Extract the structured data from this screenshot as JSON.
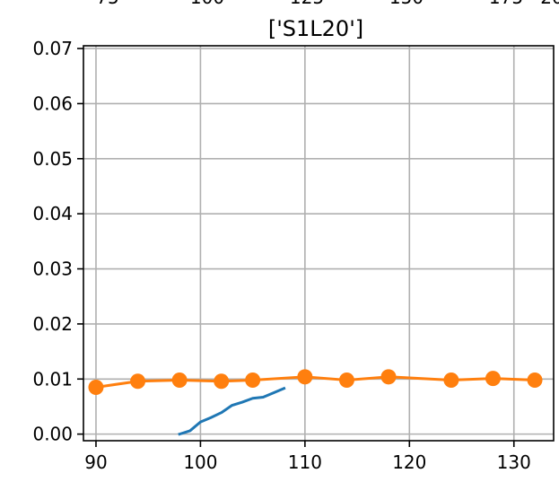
{
  "chart_data": {
    "type": "line",
    "title": "['S1L20']",
    "xlabel": "",
    "ylabel": "",
    "xlim": [
      88.8,
      133.8
    ],
    "ylim": [
      -0.0012,
      0.0705
    ],
    "x_ticks": [
      90,
      100,
      110,
      120,
      130
    ],
    "y_ticks": [
      0.0,
      0.01,
      0.02,
      0.03,
      0.04,
      0.05,
      0.06,
      0.07
    ],
    "y_tick_labels": [
      "0.00",
      "0.01",
      "0.02",
      "0.03",
      "0.04",
      "0.05",
      "0.06",
      "0.07"
    ],
    "grid": true,
    "legend": "none",
    "top_cut_labels": [
      "75",
      "100",
      "125",
      "150",
      "175",
      "20"
    ],
    "series": [
      {
        "color": "#1f77b4",
        "marker": "none",
        "x": [
          98,
          99,
          100,
          101,
          102,
          103,
          104,
          105,
          106,
          107,
          108
        ],
        "y": [
          0.0,
          0.0006,
          0.0022,
          0.003,
          0.0039,
          0.0052,
          0.0058,
          0.0065,
          0.0067,
          0.0075,
          0.0083
        ]
      },
      {
        "color": "#ff7f0e",
        "marker": "circle",
        "x": [
          90,
          94,
          98,
          102,
          105,
          110,
          114,
          118,
          124,
          128,
          132
        ],
        "y": [
          0.0085,
          0.0096,
          0.0098,
          0.0096,
          0.0098,
          0.0104,
          0.0098,
          0.0104,
          0.0098,
          0.0101,
          0.0098
        ]
      }
    ]
  }
}
